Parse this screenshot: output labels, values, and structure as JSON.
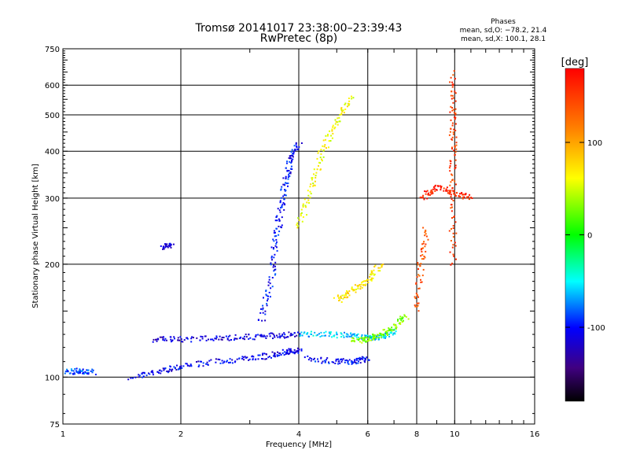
{
  "chart_data": {
    "type": "scatter",
    "title": "Tromsø 20141017 23:38:00–23:39:43",
    "subtitle": "RwPretec (8p)",
    "xlabel": "Frequency [MHz]",
    "ylabel": "Stationary phase Virtual Height [km]",
    "x_scale": "log",
    "y_scale": "log",
    "xlim": [
      1,
      16
    ],
    "ylim": [
      75,
      750
    ],
    "x_ticks": [
      1,
      2,
      4,
      6,
      8,
      10,
      16
    ],
    "x_tick_labels": [
      "1",
      "2",
      "4",
      "6",
      "8",
      "10",
      "16"
    ],
    "y_ticks": [
      75,
      100,
      200,
      300,
      400,
      500,
      600,
      750
    ],
    "y_tick_labels": [
      "75",
      "100",
      "200",
      "300",
      "400",
      "500",
      "600",
      "750"
    ],
    "grid": true,
    "legend": {
      "title": "Phases",
      "lines": [
        "mean, sd,O: −78.2, 21.4",
        "mean, sd,X: 100.1, 28.1"
      ],
      "position": "top-right"
    },
    "colorbar": {
      "label": "[deg]",
      "range": [
        -180,
        180
      ],
      "ticks": [
        100,
        0,
        -100
      ],
      "tick_labels": [
        "100",
        "0",
        "-100"
      ],
      "position": "right"
    },
    "traces": [
      {
        "points": [
          [
            1.5,
            100
          ],
          [
            1.8,
            104
          ],
          [
            2.0,
            107
          ],
          [
            2.5,
            110
          ],
          [
            3.0,
            112
          ],
          [
            3.5,
            115
          ],
          [
            3.8,
            117
          ],
          [
            4.0,
            118
          ]
        ],
        "phase": -105
      },
      {
        "points": [
          [
            4.2,
            112
          ],
          [
            5.0,
            110
          ],
          [
            5.6,
            110
          ],
          [
            6.0,
            112
          ]
        ],
        "phase": -100
      },
      {
        "points": [
          [
            1.7,
            126
          ],
          [
            2.0,
            126
          ],
          [
            2.5,
            127
          ],
          [
            3.0,
            128
          ],
          [
            3.5,
            129
          ],
          [
            4.0,
            130
          ]
        ],
        "phase": -110
      },
      {
        "points": [
          [
            4.0,
            130
          ],
          [
            4.8,
            130
          ],
          [
            5.5,
            129
          ],
          [
            6.0,
            127
          ],
          [
            6.5,
            128
          ],
          [
            7.0,
            133
          ]
        ],
        "phase": -60
      },
      {
        "points": [
          [
            5.5,
            125
          ],
          [
            6.0,
            126
          ],
          [
            6.5,
            130
          ],
          [
            7.0,
            136
          ],
          [
            7.5,
            145
          ]
        ],
        "phase": 30
      },
      {
        "points": [
          [
            3.2,
            140
          ],
          [
            3.4,
            180
          ],
          [
            3.5,
            230
          ],
          [
            3.6,
            280
          ],
          [
            3.7,
            330
          ],
          [
            3.8,
            380
          ],
          [
            4.0,
            420
          ]
        ],
        "phase": -100
      },
      {
        "points": [
          [
            4.0,
            250
          ],
          [
            4.3,
            320
          ],
          [
            4.6,
            400
          ],
          [
            5.0,
            480
          ],
          [
            5.5,
            560
          ]
        ],
        "phase": 60
      },
      {
        "points": [
          [
            5.0,
            160
          ],
          [
            5.5,
            170
          ],
          [
            6.0,
            180
          ],
          [
            6.5,
            200
          ]
        ],
        "phase": 70
      },
      {
        "points": [
          [
            9.9,
            200
          ],
          [
            9.9,
            300
          ],
          [
            9.9,
            400
          ],
          [
            9.9,
            500
          ],
          [
            9.9,
            650
          ]
        ],
        "phase": 150
      },
      {
        "points": [
          [
            8.2,
            300
          ],
          [
            9.0,
            320
          ],
          [
            10.0,
            310
          ],
          [
            11.0,
            300
          ]
        ],
        "phase": 160
      },
      {
        "points": [
          [
            8.0,
            150
          ],
          [
            8.2,
            200
          ],
          [
            8.5,
            250
          ]
        ],
        "phase": 140
      },
      {
        "points": [
          [
            1.02,
            103
          ],
          [
            1.1,
            104
          ],
          [
            1.2,
            103
          ]
        ],
        "phase": -85
      },
      {
        "points": [
          [
            1.8,
            223
          ],
          [
            1.9,
            223
          ]
        ],
        "phase": -110
      }
    ]
  }
}
